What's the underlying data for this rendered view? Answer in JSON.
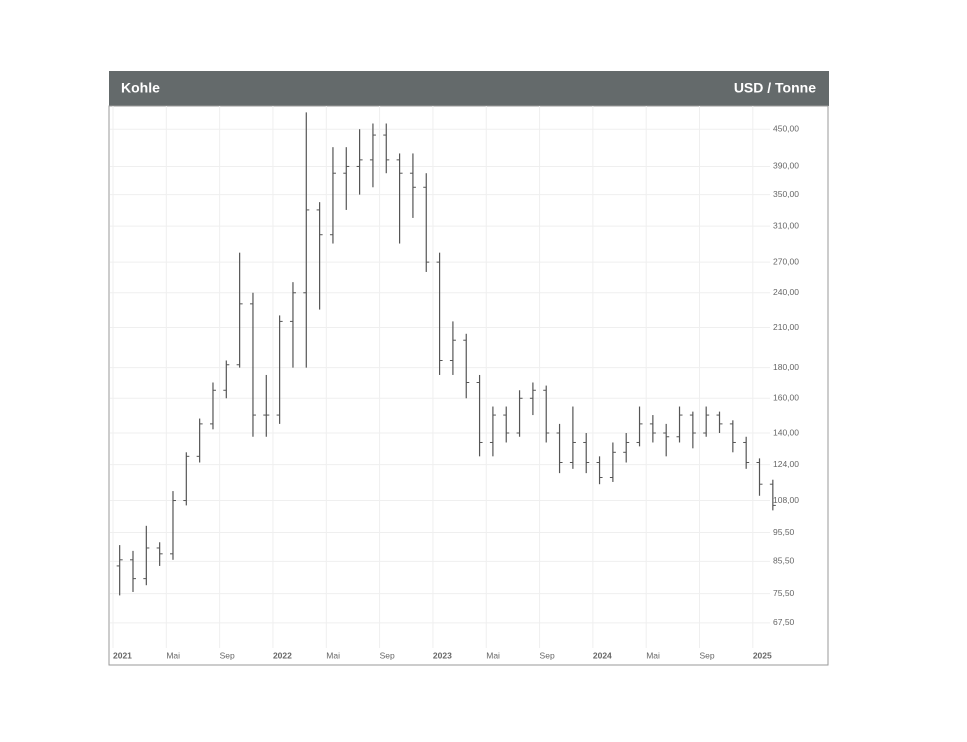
{
  "chart_data": {
    "type": "ohlc",
    "title": "Kohle",
    "unit": "USD / Tonne",
    "categories": [
      "2021",
      null,
      null,
      null,
      "Mai",
      null,
      null,
      null,
      "Sep",
      null,
      null,
      null,
      "2022",
      null,
      null,
      null,
      "Mai",
      null,
      null,
      null,
      "Sep",
      null,
      null,
      null,
      "2023",
      null,
      null,
      null,
      "Mai",
      null,
      null,
      null,
      "Sep",
      null,
      null,
      null,
      "2024",
      null,
      null,
      null,
      "Mai",
      null,
      null,
      null,
      "Sep",
      null,
      null,
      null,
      "2025",
      null
    ],
    "open": [
      84,
      86,
      80,
      90,
      88,
      108,
      128,
      145,
      165,
      182,
      230,
      150,
      150,
      215,
      240,
      330,
      300,
      380,
      390,
      400,
      440,
      400,
      380,
      360,
      270,
      185,
      200,
      170,
      135,
      150,
      140,
      160,
      165,
      140,
      125,
      135,
      125,
      118,
      130,
      135,
      145,
      140,
      138,
      150,
      140,
      150,
      145,
      135,
      125,
      115
    ],
    "high": [
      91,
      89,
      98,
      92,
      112,
      130,
      148,
      170,
      185,
      280,
      240,
      175,
      220,
      250,
      480,
      340,
      420,
      420,
      450,
      460,
      460,
      410,
      410,
      380,
      280,
      215,
      205,
      175,
      155,
      155,
      165,
      170,
      168,
      145,
      155,
      140,
      128,
      135,
      140,
      155,
      150,
      145,
      155,
      152,
      155,
      152,
      147,
      138,
      127,
      117
    ],
    "low": [
      75,
      76,
      78,
      84,
      86,
      106,
      125,
      142,
      160,
      180,
      138,
      138,
      145,
      180,
      180,
      225,
      290,
      330,
      350,
      360,
      380,
      290,
      320,
      260,
      175,
      175,
      160,
      128,
      128,
      135,
      138,
      150,
      135,
      120,
      122,
      120,
      115,
      116,
      125,
      133,
      135,
      128,
      135,
      132,
      138,
      140,
      130,
      122,
      110,
      104
    ],
    "close": [
      86,
      80,
      90,
      88,
      108,
      128,
      145,
      165,
      182,
      230,
      150,
      150,
      215,
      240,
      330,
      300,
      380,
      390,
      400,
      440,
      400,
      380,
      360,
      270,
      185,
      200,
      170,
      135,
      150,
      140,
      160,
      165,
      140,
      125,
      135,
      125,
      118,
      130,
      135,
      145,
      140,
      138,
      150,
      140,
      150,
      145,
      135,
      125,
      115,
      106
    ],
    "color": "#555555",
    "log_scale": true,
    "grid": true,
    "ylim": [
      57.4,
      492
    ],
    "yticks": [
      {
        "value": 450,
        "label": "450,00"
      },
      {
        "value": 390,
        "label": "390,00"
      },
      {
        "value": 350,
        "label": "350,00"
      },
      {
        "value": 310,
        "label": "310,00"
      },
      {
        "value": 270,
        "label": "270,00"
      },
      {
        "value": 240,
        "label": "240,00"
      },
      {
        "value": 210,
        "label": "210,00"
      },
      {
        "value": 180,
        "label": "180,00"
      },
      {
        "value": 160,
        "label": "160,00"
      },
      {
        "value": 140,
        "label": "140,00"
      },
      {
        "value": 124,
        "label": "124,00"
      },
      {
        "value": 108,
        "label": "108,00"
      },
      {
        "value": 95.5,
        "label": "95,50"
      },
      {
        "value": 85.5,
        "label": "85,50"
      },
      {
        "value": 75.5,
        "label": "75,50"
      },
      {
        "value": 67.5,
        "label": "67,50"
      }
    ]
  }
}
